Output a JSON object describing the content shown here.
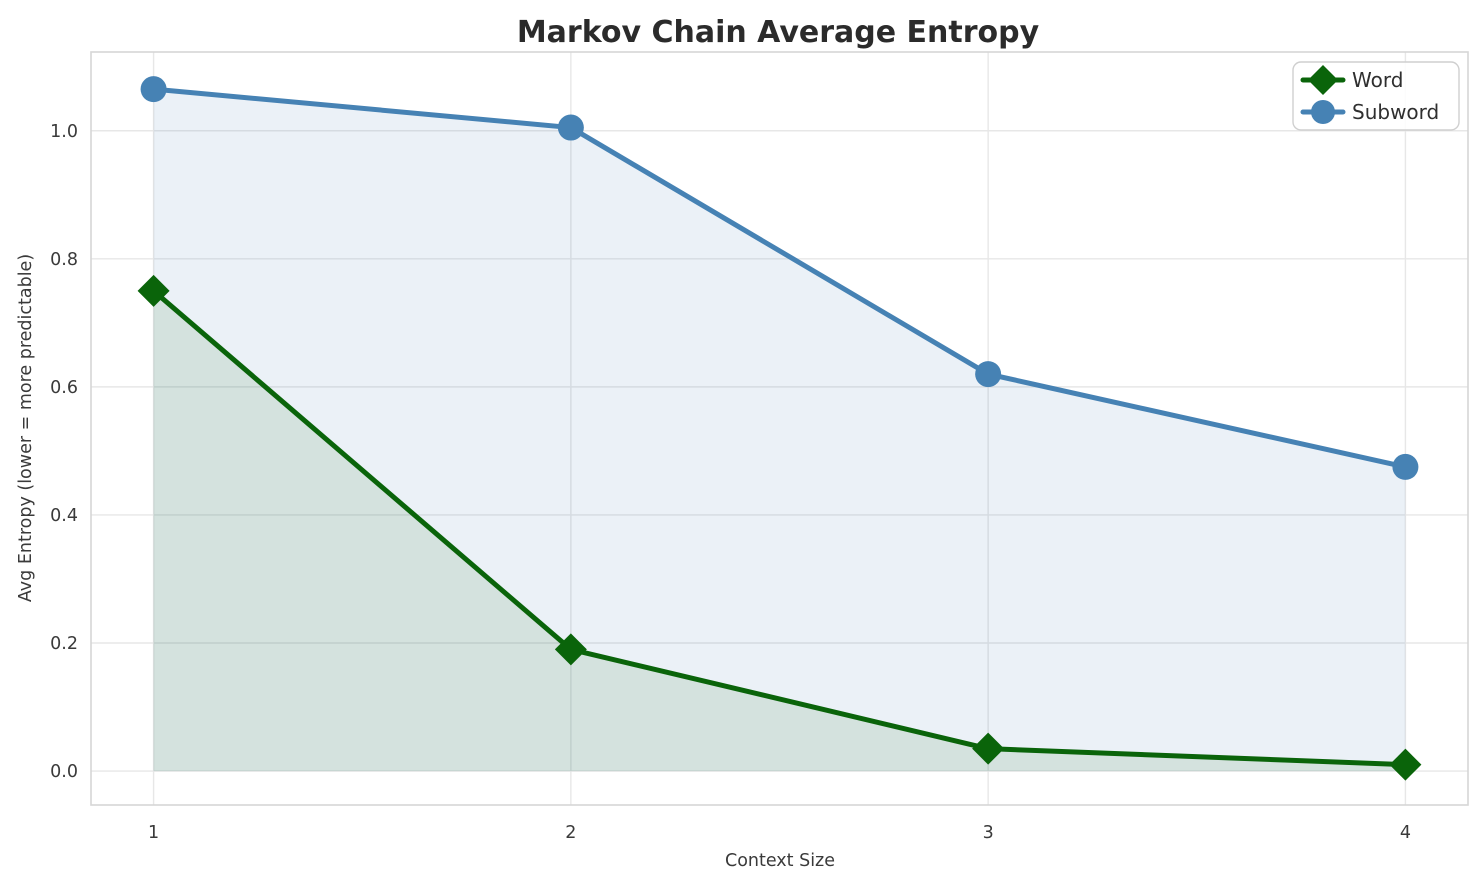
{
  "figure": {
    "background": "#ffffff",
    "grid_color": "#e7e7e7",
    "spine_color": "#d6d6d6",
    "tick_text_color": "#3a3a3a",
    "title_color": "#2b2b2b"
  },
  "chart_data": {
    "type": "line",
    "title": "Markov Chain Average Entropy",
    "xlabel": "Context Size",
    "ylabel": "Avg Entropy (lower = more predictable)",
    "x": [
      1,
      2,
      3,
      4
    ],
    "xticks": [
      "1",
      "2",
      "3",
      "4"
    ],
    "yticks": [
      0.0,
      0.2,
      0.4,
      0.6,
      0.8,
      1.0
    ],
    "xlim": [
      0.85,
      4.15
    ],
    "ylim": [
      -0.053,
      1.123
    ],
    "grid": true,
    "legend": {
      "position": "upper-right",
      "items": [
        "Word",
        "Subword"
      ]
    },
    "series": [
      {
        "name": "Word",
        "marker": "diamond",
        "color": "#0a640a",
        "line_width": 5,
        "fill_alpha": 0.1,
        "values": [
          0.75,
          0.19,
          0.035,
          0.01
        ]
      },
      {
        "name": "Subword",
        "marker": "circle",
        "color": "#4682b4",
        "line_width": 5,
        "fill_alpha": 0.11,
        "values": [
          1.065,
          1.005,
          0.62,
          0.475
        ]
      }
    ]
  }
}
